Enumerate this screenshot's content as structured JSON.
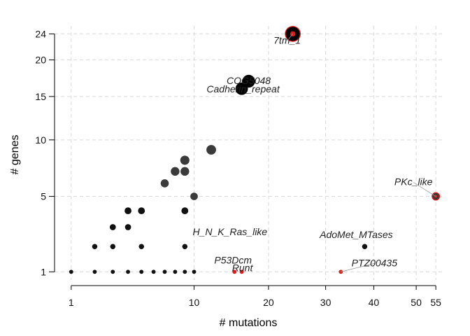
{
  "chart_data": {
    "type": "scatter",
    "xlabel": "# mutations",
    "ylabel": "# genes",
    "x_ticks": [
      1,
      10,
      20,
      30,
      40,
      50,
      55
    ],
    "y_ticks": [
      1,
      5,
      10,
      15,
      20,
      24
    ],
    "x_scale": "sqrt",
    "y_scale": "sqrt",
    "xlim": [
      0.5,
      57
    ],
    "ylim": [
      0.75,
      25.3
    ],
    "grid": true,
    "colors": {
      "point": "#111111",
      "highlight": "#e31a1c",
      "grid": "#d9d9d9"
    },
    "points": [
      {
        "x": 1,
        "y": 1
      },
      {
        "x": 2,
        "y": 1
      },
      {
        "x": 3,
        "y": 1
      },
      {
        "x": 4,
        "y": 1
      },
      {
        "x": 5,
        "y": 1
      },
      {
        "x": 6,
        "y": 1
      },
      {
        "x": 7,
        "y": 1
      },
      {
        "x": 8,
        "y": 1
      },
      {
        "x": 9,
        "y": 1
      },
      {
        "x": 10,
        "y": 1
      },
      {
        "x": 2,
        "y": 2
      },
      {
        "x": 3,
        "y": 2
      },
      {
        "x": 5,
        "y": 2
      },
      {
        "x": 9,
        "y": 2
      },
      {
        "x": 3,
        "y": 3
      },
      {
        "x": 4,
        "y": 3
      },
      {
        "x": 4,
        "y": 4
      },
      {
        "x": 5,
        "y": 4
      },
      {
        "x": 9,
        "y": 4
      },
      {
        "x": 10,
        "y": 5
      },
      {
        "x": 7,
        "y": 6
      },
      {
        "x": 8,
        "y": 7
      },
      {
        "x": 9,
        "y": 7
      },
      {
        "x": 9,
        "y": 8
      },
      {
        "x": 12,
        "y": 9
      },
      {
        "x": 15,
        "y": 1,
        "highlight": true
      },
      {
        "x": 16,
        "y": 1,
        "highlight": true
      },
      {
        "x": 16,
        "y": 16
      },
      {
        "x": 17,
        "y": 17
      },
      {
        "x": 24,
        "y": 24,
        "highlight": true
      },
      {
        "x": 33,
        "y": 1,
        "highlight": true
      },
      {
        "x": 38,
        "y": 2
      },
      {
        "x": 55,
        "y": 5,
        "highlight": true
      }
    ],
    "annotations": [
      {
        "text": "7tm_1",
        "x": 24,
        "y": 24
      },
      {
        "text": "COG5048",
        "x": 17,
        "y": 17
      },
      {
        "text": "Cadherin_repeat",
        "x": 16,
        "y": 16
      },
      {
        "text": "PKc_like",
        "x": 55,
        "y": 5
      },
      {
        "text": "H_N_K_Ras_like",
        "x": 10,
        "y": 2
      },
      {
        "text": "AdoMet_MTases",
        "x": 38,
        "y": 2
      },
      {
        "text": "P53Dcm",
        "x": 15,
        "y": 1
      },
      {
        "text": "PTZ00435",
        "x": 33,
        "y": 1
      },
      {
        "text": "Runt",
        "x": 16,
        "y": 1
      }
    ]
  }
}
